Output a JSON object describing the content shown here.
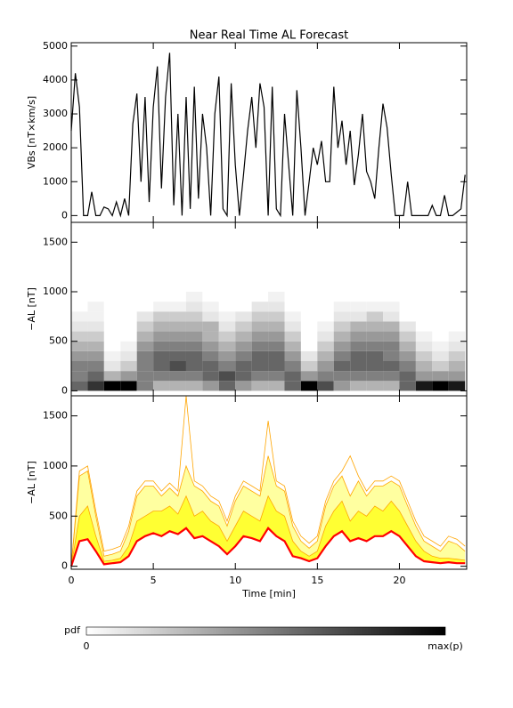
{
  "chart_data": [
    {
      "type": "line",
      "title": "Near Real Time AL Forecast",
      "ylabel": "VBs [nT×km/s]",
      "color": "#000000",
      "xlim": [
        0,
        24.1
      ],
      "ylim": [
        -200,
        5100
      ],
      "yticks": [
        0,
        1000,
        2000,
        3000,
        4000,
        5000
      ],
      "x": [
        0,
        0.25,
        0.5,
        0.75,
        1,
        1.25,
        1.5,
        1.75,
        2,
        2.25,
        2.5,
        2.75,
        3,
        3.25,
        3.5,
        3.75,
        4,
        4.25,
        4.5,
        4.75,
        5,
        5.25,
        5.5,
        5.75,
        6,
        6.25,
        6.5,
        6.75,
        7,
        7.25,
        7.5,
        7.75,
        8,
        8.25,
        8.5,
        8.75,
        9,
        9.25,
        9.5,
        9.75,
        10,
        10.25,
        10.5,
        10.75,
        11,
        11.25,
        11.5,
        11.75,
        12,
        12.25,
        12.5,
        12.75,
        13,
        13.25,
        13.5,
        13.75,
        14,
        14.25,
        14.5,
        14.75,
        15,
        15.25,
        15.5,
        15.75,
        16,
        16.25,
        16.5,
        16.75,
        17,
        17.25,
        17.5,
        17.75,
        18,
        18.25,
        18.5,
        18.75,
        19,
        19.25,
        19.5,
        19.75,
        20,
        20.25,
        20.5,
        20.75,
        21,
        21.25,
        21.5,
        21.75,
        22,
        22.25,
        22.5,
        22.75,
        23,
        23.25,
        23.5,
        23.75,
        24
      ],
      "values": [
        2500,
        4200,
        3200,
        0,
        0,
        700,
        0,
        0,
        250,
        200,
        0,
        400,
        0,
        500,
        0,
        2700,
        3600,
        1000,
        3500,
        400,
        3200,
        4400,
        800,
        3500,
        4800,
        300,
        3000,
        0,
        3500,
        200,
        3800,
        500,
        3000,
        2000,
        0,
        3000,
        4100,
        200,
        0,
        3900,
        1500,
        0,
        1200,
        2500,
        3500,
        2000,
        3900,
        3200,
        0,
        3800,
        200,
        0,
        3000,
        1500,
        0,
        3700,
        2000,
        0,
        1000,
        2000,
        1500,
        2200,
        1000,
        1000,
        3800,
        2000,
        2800,
        1500,
        2500,
        900,
        1800,
        3000,
        1300,
        1000,
        500,
        2000,
        3300,
        2600,
        1200,
        0,
        0,
        0,
        1000,
        0,
        0,
        0,
        0,
        0,
        300,
        0,
        0,
        600,
        0,
        0,
        100,
        200,
        1200
      ]
    },
    {
      "type": "heatmap",
      "ylabel": "−AL [nT]",
      "xlim": [
        0,
        24.1
      ],
      "ylim": [
        -50,
        1700
      ],
      "yticks": [
        0,
        500,
        1000,
        1500
      ],
      "xbins": [
        0,
        1,
        2,
        3,
        4,
        5,
        6,
        7,
        8,
        9,
        10,
        11,
        12,
        13,
        14,
        15,
        16,
        17,
        18,
        19,
        20,
        21,
        22,
        23,
        24
      ],
      "ybins": [
        0,
        100,
        200,
        300,
        400,
        500,
        600,
        700,
        800,
        900,
        1000,
        1100,
        1200
      ],
      "z": [
        [
          0.6,
          0.5,
          0.5,
          0.4,
          0.3,
          0.2,
          0.1,
          0.05,
          0,
          0,
          0,
          0
        ],
        [
          0.8,
          0.6,
          0.5,
          0.4,
          0.3,
          0.2,
          0.1,
          0.05,
          0.05,
          0,
          0,
          0
        ],
        [
          1,
          0.3,
          0.1,
          0.05,
          0,
          0,
          0,
          0,
          0,
          0,
          0,
          0
        ],
        [
          1,
          0.4,
          0.2,
          0.1,
          0.05,
          0,
          0,
          0,
          0,
          0,
          0,
          0
        ],
        [
          0.5,
          0.5,
          0.5,
          0.5,
          0.4,
          0.3,
          0.2,
          0.1,
          0,
          0,
          0,
          0
        ],
        [
          0.3,
          0.5,
          0.6,
          0.6,
          0.5,
          0.4,
          0.3,
          0.2,
          0.05,
          0,
          0,
          0
        ],
        [
          0.3,
          0.5,
          0.7,
          0.6,
          0.5,
          0.4,
          0.3,
          0.2,
          0.05,
          0,
          0,
          0
        ],
        [
          0.3,
          0.5,
          0.6,
          0.6,
          0.5,
          0.4,
          0.3,
          0.2,
          0.1,
          0.05,
          0,
          0
        ],
        [
          0.4,
          0.6,
          0.6,
          0.5,
          0.4,
          0.3,
          0.3,
          0.1,
          0.05,
          0,
          0,
          0
        ],
        [
          0.6,
          0.7,
          0.5,
          0.4,
          0.3,
          0.2,
          0.1,
          0.05,
          0,
          0,
          0,
          0
        ],
        [
          0.4,
          0.6,
          0.6,
          0.5,
          0.4,
          0.3,
          0.2,
          0.1,
          0,
          0,
          0,
          0
        ],
        [
          0.3,
          0.5,
          0.6,
          0.6,
          0.5,
          0.4,
          0.3,
          0.2,
          0.1,
          0,
          0,
          0
        ],
        [
          0.3,
          0.5,
          0.6,
          0.6,
          0.5,
          0.4,
          0.3,
          0.2,
          0.1,
          0.05,
          0,
          0
        ],
        [
          0.6,
          0.6,
          0.5,
          0.4,
          0.3,
          0.2,
          0.1,
          0.05,
          0,
          0,
          0,
          0
        ],
        [
          1,
          0.4,
          0.2,
          0.1,
          0,
          0,
          0,
          0,
          0,
          0,
          0,
          0
        ],
        [
          0.7,
          0.5,
          0.4,
          0.3,
          0.2,
          0.1,
          0.05,
          0,
          0,
          0,
          0,
          0
        ],
        [
          0.4,
          0.5,
          0.6,
          0.5,
          0.4,
          0.3,
          0.2,
          0.1,
          0.05,
          0,
          0,
          0
        ],
        [
          0.3,
          0.5,
          0.6,
          0.6,
          0.5,
          0.4,
          0.3,
          0.1,
          0.05,
          0,
          0,
          0
        ],
        [
          0.3,
          0.5,
          0.6,
          0.6,
          0.5,
          0.4,
          0.3,
          0.2,
          0.05,
          0,
          0,
          0
        ],
        [
          0.3,
          0.5,
          0.6,
          0.5,
          0.5,
          0.4,
          0.3,
          0.1,
          0.05,
          0,
          0,
          0
        ],
        [
          0.6,
          0.6,
          0.5,
          0.4,
          0.3,
          0.2,
          0.1,
          0,
          0,
          0,
          0,
          0
        ],
        [
          0.9,
          0.4,
          0.3,
          0.2,
          0.1,
          0.05,
          0,
          0,
          0,
          0,
          0,
          0
        ],
        [
          1,
          0.4,
          0.2,
          0.1,
          0.05,
          0,
          0,
          0,
          0,
          0,
          0,
          0
        ],
        [
          0.9,
          0.4,
          0.3,
          0.2,
          0.1,
          0.05,
          0,
          0,
          0,
          0,
          0,
          0
        ]
      ],
      "colorbar": {
        "label": "pdf",
        "min_label": "0",
        "max_label": "max(p)"
      }
    },
    {
      "type": "band",
      "ylabel": "−AL [nT]",
      "xlabel": "Time [min]",
      "xlim": [
        0,
        24.1
      ],
      "ylim": [
        -30,
        1700
      ],
      "xticks": [
        0,
        5,
        10,
        15,
        20
      ],
      "yticks": [
        0,
        500,
        1000,
        1500
      ],
      "edge_color": "#ffa500",
      "x": [
        0,
        0.5,
        1,
        1.5,
        2,
        2.5,
        3,
        3.5,
        4,
        4.5,
        5,
        5.5,
        6,
        6.5,
        7,
        7.5,
        8,
        8.5,
        9,
        9.5,
        10,
        10.5,
        11,
        11.5,
        12,
        12.5,
        13,
        13.5,
        14,
        14.5,
        15,
        15.5,
        16,
        16.5,
        17,
        17.5,
        18,
        18.5,
        19,
        19.5,
        20,
        20.5,
        21,
        21.5,
        22,
        22.5,
        23,
        23.5,
        24
      ],
      "series": [
        {
          "color": "#ff0000",
          "values": [
            0,
            250,
            270,
            150,
            20,
            30,
            40,
            100,
            250,
            300,
            330,
            300,
            350,
            320,
            380,
            280,
            300,
            250,
            200,
            120,
            200,
            300,
            280,
            250,
            380,
            300,
            250,
            100,
            80,
            50,
            80,
            200,
            300,
            350,
            250,
            280,
            250,
            300,
            300,
            350,
            300,
            200,
            100,
            50,
            40,
            30,
            40,
            30,
            30
          ]
        },
        {
          "color": "#ffff33",
          "values": [
            0,
            500,
            600,
            300,
            50,
            60,
            80,
            200,
            450,
            500,
            550,
            550,
            600,
            520,
            700,
            500,
            550,
            450,
            400,
            250,
            400,
            550,
            500,
            450,
            700,
            550,
            500,
            250,
            150,
            100,
            150,
            400,
            550,
            650,
            450,
            550,
            500,
            600,
            550,
            650,
            550,
            400,
            250,
            150,
            100,
            80,
            80,
            70,
            60
          ]
        },
        {
          "color": "#ffffa0",
          "values": [
            0,
            900,
            950,
            500,
            100,
            120,
            150,
            350,
            700,
            800,
            800,
            700,
            780,
            700,
            1000,
            800,
            750,
            650,
            600,
            400,
            650,
            800,
            750,
            700,
            1100,
            800,
            750,
            400,
            250,
            180,
            250,
            600,
            800,
            900,
            700,
            850,
            700,
            800,
            800,
            850,
            800,
            600,
            400,
            250,
            200,
            150,
            250,
            220,
            150
          ]
        },
        {
          "color": "#ffa500",
          "values": [
            0,
            950,
            1000,
            550,
            150,
            170,
            200,
            400,
            750,
            850,
            850,
            750,
            830,
            750,
            1700,
            850,
            800,
            700,
            650,
            450,
            700,
            850,
            800,
            750,
            1450,
            850,
            800,
            450,
            300,
            230,
            300,
            650,
            850,
            950,
            1100,
            900,
            750,
            850,
            850,
            900,
            850,
            650,
            450,
            300,
            250,
            200,
            300,
            270,
            200
          ]
        }
      ]
    }
  ]
}
